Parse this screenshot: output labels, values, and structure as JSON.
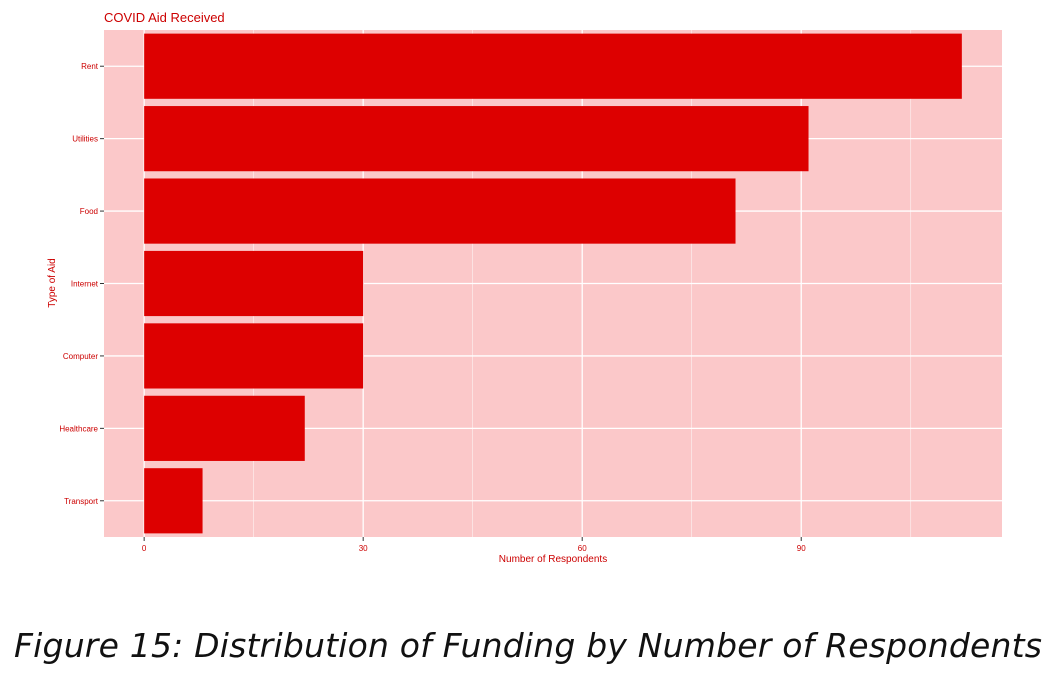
{
  "chart_data": {
    "type": "bar",
    "orientation": "horizontal",
    "title": "COVID Aid Received",
    "xlabel": "Number of Respondents",
    "ylabel": "Type of Aid",
    "categories": [
      "Rent",
      "Utilities",
      "Food",
      "Internet",
      "Computer",
      "Healthcare",
      "Transport"
    ],
    "values": [
      112,
      91,
      81,
      30,
      30,
      22,
      8
    ],
    "xlim": [
      -5.5,
      117.5
    ],
    "xticks": [
      0,
      30,
      60,
      90
    ],
    "grid": true,
    "legend": "none",
    "colors": {
      "bar": "#dd0000",
      "panel": "#fbc8c9",
      "gridline": "#ffffff",
      "text": "#cc0000"
    }
  },
  "caption": "Figure 15: Distribution of Funding by Number of Respondents"
}
